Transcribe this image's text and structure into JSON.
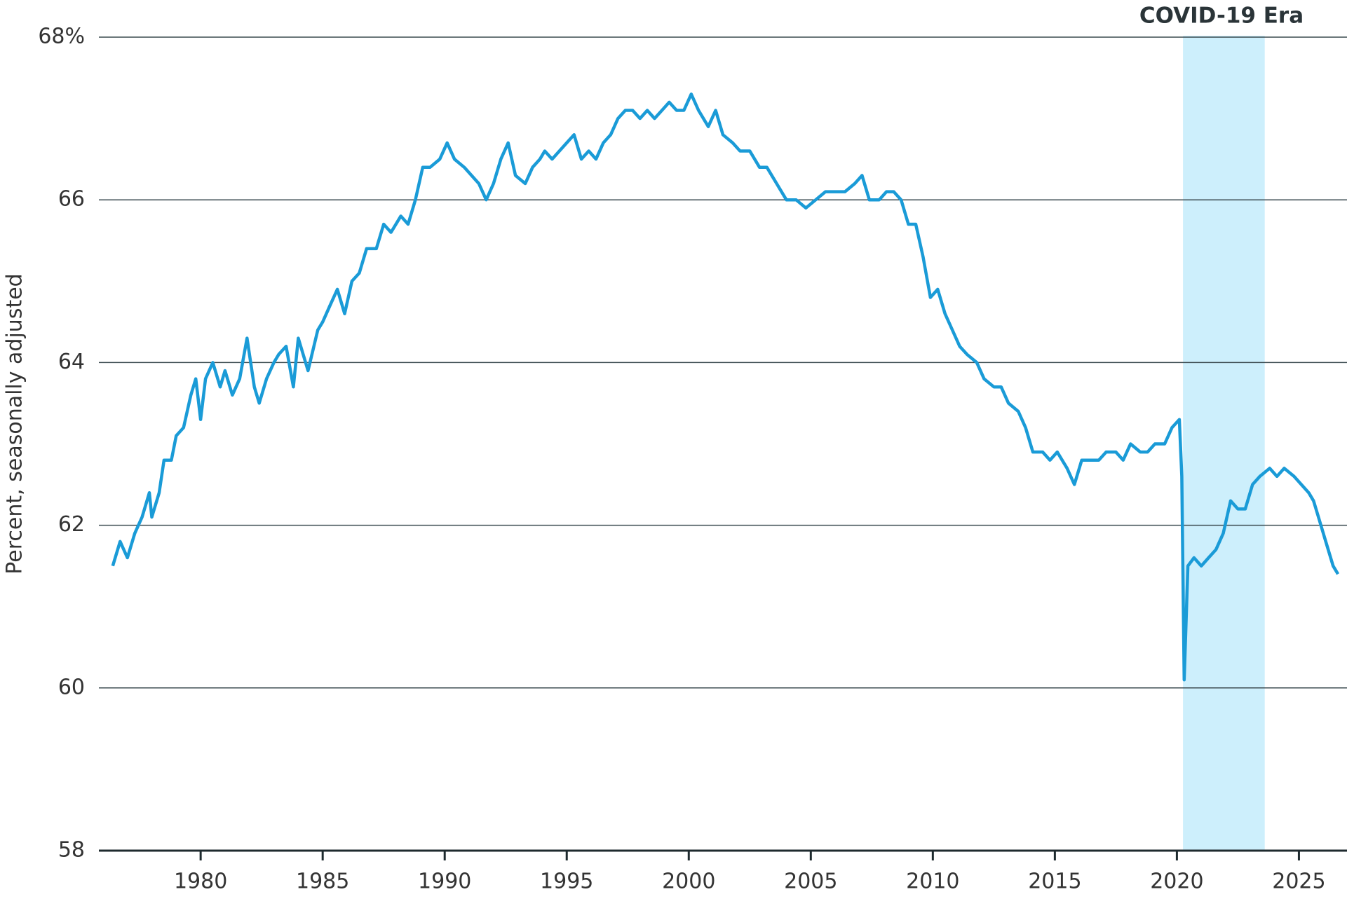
{
  "chart_data": {
    "type": "line",
    "y_label": "Percent, seasonally adjusted",
    "annotation": {
      "label": "COVID-19 Era",
      "from": 2020.25,
      "to": 2023.6,
      "color": "#cdeffc"
    },
    "color": "#1a9bd7",
    "xlim": [
      1975.83,
      2026.97
    ],
    "ylim": [
      58,
      68
    ],
    "xticks": [
      1980,
      1985,
      1990,
      1995,
      2000,
      2005,
      2010,
      2015,
      2020,
      2025
    ],
    "yticks": [
      58,
      60,
      62,
      64,
      66,
      {
        "value": 68,
        "label": "68%"
      }
    ],
    "grid": true,
    "x": [
      1976.4,
      1976.7,
      1977.0,
      1977.3,
      1977.6,
      1977.9,
      1978.0,
      1978.3,
      1978.5,
      1978.8,
      1979.0,
      1979.3,
      1979.6,
      1979.8,
      1980.0,
      1980.2,
      1980.5,
      1980.8,
      1981.0,
      1981.3,
      1981.6,
      1981.9,
      1982.2,
      1982.4,
      1982.7,
      1983.0,
      1983.2,
      1983.5,
      1983.8,
      1984.0,
      1984.4,
      1984.8,
      1985.0,
      1985.3,
      1985.6,
      1985.9,
      1986.2,
      1986.5,
      1986.8,
      1987.2,
      1987.5,
      1987.8,
      1988.2,
      1988.5,
      1988.8,
      1989.1,
      1989.4,
      1989.8,
      1990.1,
      1990.4,
      1990.8,
      1991.1,
      1991.4,
      1991.7,
      1992.0,
      1992.3,
      1992.6,
      1992.9,
      1993.3,
      1993.6,
      1993.9,
      1994.1,
      1994.4,
      1994.7,
      1995.0,
      1995.3,
      1995.6,
      1995.9,
      1996.2,
      1996.5,
      1996.8,
      1997.1,
      1997.4,
      1997.7,
      1998.0,
      1998.3,
      1998.6,
      1998.9,
      1999.2,
      1999.5,
      1999.8,
      2000.1,
      2000.4,
      2000.8,
      2001.1,
      2001.4,
      2001.8,
      2002.1,
      2002.5,
      2002.9,
      2003.2,
      2003.6,
      2004.0,
      2004.4,
      2004.8,
      2005.2,
      2005.6,
      2006.0,
      2006.4,
      2006.8,
      2007.1,
      2007.4,
      2007.8,
      2008.1,
      2008.4,
      2008.7,
      2009.0,
      2009.3,
      2009.6,
      2009.9,
      2010.2,
      2010.5,
      2010.8,
      2011.1,
      2011.4,
      2011.8,
      2012.1,
      2012.5,
      2012.8,
      2013.1,
      2013.5,
      2013.8,
      2014.1,
      2014.5,
      2014.8,
      2015.1,
      2015.5,
      2015.8,
      2016.1,
      2016.5,
      2016.8,
      2017.1,
      2017.5,
      2017.8,
      2018.1,
      2018.5,
      2018.8,
      2019.1,
      2019.5,
      2019.8,
      2020.1,
      2020.2,
      2020.3,
      2020.45,
      2020.7,
      2021.0,
      2021.3,
      2021.6,
      2021.9,
      2022.2,
      2022.5,
      2022.8,
      2023.1,
      2023.4,
      2023.8,
      2024.1,
      2024.4,
      2024.8,
      2025.1,
      2025.4,
      2025.6,
      2025.8,
      2026.1,
      2026.4,
      2026.6
    ],
    "values": [
      61.5,
      61.8,
      61.6,
      61.9,
      62.1,
      62.4,
      62.1,
      62.4,
      62.8,
      62.8,
      63.1,
      63.2,
      63.6,
      63.8,
      63.3,
      63.8,
      64.0,
      63.7,
      63.9,
      63.6,
      63.8,
      64.3,
      63.7,
      63.5,
      63.8,
      64.0,
      64.1,
      64.2,
      63.7,
      64.3,
      63.9,
      64.4,
      64.5,
      64.7,
      64.9,
      64.6,
      65.0,
      65.1,
      65.4,
      65.4,
      65.7,
      65.6,
      65.8,
      65.7,
      66.0,
      66.4,
      66.4,
      66.5,
      66.7,
      66.5,
      66.4,
      66.3,
      66.2,
      66.0,
      66.2,
      66.5,
      66.7,
      66.3,
      66.2,
      66.4,
      66.5,
      66.6,
      66.5,
      66.6,
      66.7,
      66.8,
      66.5,
      66.6,
      66.5,
      66.7,
      66.8,
      67.0,
      67.1,
      67.1,
      67.0,
      67.1,
      67.0,
      67.1,
      67.2,
      67.1,
      67.1,
      67.3,
      67.1,
      66.9,
      67.1,
      66.8,
      66.7,
      66.6,
      66.6,
      66.4,
      66.4,
      66.2,
      66.0,
      66.0,
      65.9,
      66.0,
      66.1,
      66.1,
      66.1,
      66.2,
      66.3,
      66.0,
      66.0,
      66.1,
      66.1,
      66.0,
      65.7,
      65.7,
      65.3,
      64.8,
      64.9,
      64.6,
      64.4,
      64.2,
      64.1,
      64.0,
      63.8,
      63.7,
      63.7,
      63.5,
      63.4,
      63.2,
      62.9,
      62.9,
      62.8,
      62.9,
      62.7,
      62.5,
      62.8,
      62.8,
      62.8,
      62.9,
      62.9,
      62.8,
      63.0,
      62.9,
      62.9,
      63.0,
      63.0,
      63.2,
      63.3,
      62.6,
      60.1,
      61.5,
      61.6,
      61.5,
      61.6,
      61.7,
      61.9,
      62.3,
      62.2,
      62.2,
      62.5,
      62.6,
      62.7,
      62.6,
      62.7,
      62.6,
      62.5,
      62.4,
      62.3,
      62.1,
      61.8,
      61.5,
      61.4
    ]
  }
}
